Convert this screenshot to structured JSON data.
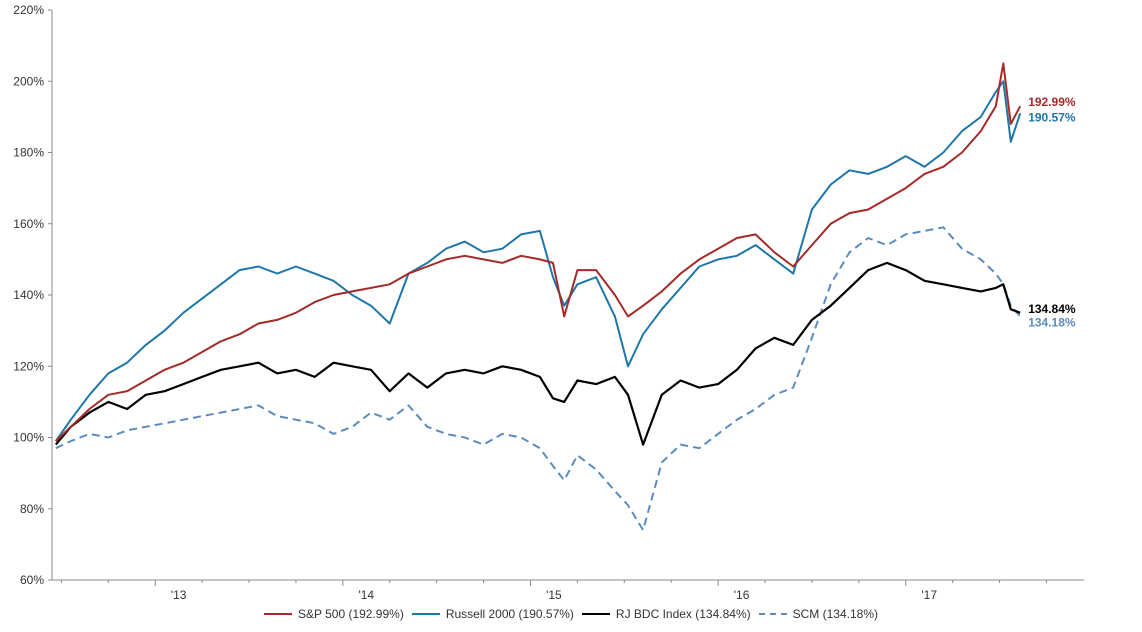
{
  "chart_data": {
    "type": "line",
    "y_ticks": [
      "60%",
      "80%",
      "100%",
      "120%",
      "140%",
      "160%",
      "180%",
      "200%",
      "220%"
    ],
    "ylim": [
      60,
      220
    ],
    "x_ticks": [
      "'13",
      "'14",
      "'15",
      "'16",
      "'17"
    ],
    "xlim": [
      2012.45,
      2017.95
    ],
    "x_tick_positions": [
      2013.0,
      2014.0,
      2015.0,
      2016.0,
      2017.0
    ],
    "grid": false,
    "legend_position": "bottom",
    "series": [
      {
        "name": "S&P 500 (192.99%)",
        "end_label": "192.99%",
        "color": "#a52a2a",
        "dash": "solid",
        "x": [
          2012.47,
          2012.55,
          2012.65,
          2012.75,
          2012.85,
          2012.95,
          2013.05,
          2013.15,
          2013.25,
          2013.35,
          2013.45,
          2013.55,
          2013.65,
          2013.75,
          2013.85,
          2013.95,
          2014.05,
          2014.15,
          2014.25,
          2014.35,
          2014.45,
          2014.55,
          2014.65,
          2014.75,
          2014.85,
          2014.95,
          2015.05,
          2015.12,
          2015.18,
          2015.25,
          2015.35,
          2015.45,
          2015.52,
          2015.6,
          2015.7,
          2015.8,
          2015.9,
          2016.0,
          2016.1,
          2016.2,
          2016.3,
          2016.4,
          2016.5,
          2016.6,
          2016.7,
          2016.8,
          2016.9,
          2017.0,
          2017.1,
          2017.2,
          2017.3,
          2017.4,
          2017.48,
          2017.52,
          2017.56,
          2017.61
        ],
        "y": [
          99,
          103,
          108,
          112,
          113,
          116,
          119,
          121,
          124,
          127,
          129,
          132,
          133,
          135,
          138,
          140,
          141,
          142,
          143,
          146,
          148,
          150,
          151,
          150,
          149,
          151,
          150,
          149,
          134,
          147,
          147,
          140,
          134,
          137,
          141,
          146,
          150,
          153,
          156,
          157,
          152,
          148,
          154,
          160,
          163,
          164,
          167,
          170,
          174,
          176,
          180,
          186,
          193,
          205,
          188,
          193
        ]
      },
      {
        "name": "Russell 2000 (190.57%)",
        "end_label": "190.57%",
        "color": "#1f77a8",
        "dash": "solid",
        "x": [
          2012.47,
          2012.55,
          2012.65,
          2012.75,
          2012.85,
          2012.95,
          2013.05,
          2013.15,
          2013.25,
          2013.35,
          2013.45,
          2013.55,
          2013.65,
          2013.75,
          2013.85,
          2013.95,
          2014.05,
          2014.15,
          2014.25,
          2014.35,
          2014.45,
          2014.55,
          2014.65,
          2014.75,
          2014.85,
          2014.95,
          2015.05,
          2015.12,
          2015.18,
          2015.25,
          2015.35,
          2015.45,
          2015.52,
          2015.6,
          2015.7,
          2015.8,
          2015.9,
          2016.0,
          2016.1,
          2016.2,
          2016.3,
          2016.4,
          2016.5,
          2016.6,
          2016.7,
          2016.8,
          2016.9,
          2017.0,
          2017.1,
          2017.2,
          2017.3,
          2017.4,
          2017.48,
          2017.52,
          2017.56,
          2017.61
        ],
        "y": [
          99,
          105,
          112,
          118,
          121,
          126,
          130,
          135,
          139,
          143,
          147,
          148,
          146,
          148,
          146,
          144,
          140,
          137,
          132,
          146,
          149,
          153,
          155,
          152,
          153,
          157,
          158,
          145,
          137,
          143,
          145,
          134,
          120,
          129,
          136,
          142,
          148,
          150,
          151,
          154,
          150,
          146,
          164,
          171,
          175,
          174,
          176,
          179,
          176,
          180,
          186,
          190,
          197,
          200,
          183,
          191
        ]
      },
      {
        "name": "RJ BDC Index (134.84%)",
        "end_label": "134.84%",
        "color": "#000000",
        "dash": "solid",
        "x": [
          2012.47,
          2012.55,
          2012.65,
          2012.75,
          2012.85,
          2012.95,
          2013.05,
          2013.15,
          2013.25,
          2013.35,
          2013.45,
          2013.55,
          2013.65,
          2013.75,
          2013.85,
          2013.95,
          2014.05,
          2014.15,
          2014.25,
          2014.35,
          2014.45,
          2014.55,
          2014.65,
          2014.75,
          2014.85,
          2014.95,
          2015.05,
          2015.12,
          2015.18,
          2015.25,
          2015.35,
          2015.45,
          2015.52,
          2015.6,
          2015.7,
          2015.8,
          2015.9,
          2016.0,
          2016.1,
          2016.2,
          2016.3,
          2016.4,
          2016.5,
          2016.6,
          2016.7,
          2016.8,
          2016.9,
          2017.0,
          2017.1,
          2017.2,
          2017.3,
          2017.4,
          2017.48,
          2017.52,
          2017.56,
          2017.61
        ],
        "y": [
          98,
          103,
          107,
          110,
          108,
          112,
          113,
          115,
          117,
          119,
          120,
          121,
          118,
          119,
          117,
          121,
          120,
          119,
          113,
          118,
          114,
          118,
          119,
          118,
          120,
          119,
          117,
          111,
          110,
          116,
          115,
          117,
          112,
          98,
          112,
          116,
          114,
          115,
          119,
          125,
          128,
          126,
          133,
          137,
          142,
          147,
          149,
          147,
          144,
          143,
          142,
          141,
          142,
          143,
          136,
          135
        ]
      },
      {
        "name": "SCM (134.18%)",
        "end_label": "134.18%",
        "color": "#5b8cbc",
        "dash": "8,5",
        "x": [
          2012.47,
          2012.55,
          2012.65,
          2012.75,
          2012.85,
          2012.95,
          2013.05,
          2013.15,
          2013.25,
          2013.35,
          2013.45,
          2013.55,
          2013.65,
          2013.75,
          2013.85,
          2013.95,
          2014.05,
          2014.15,
          2014.25,
          2014.35,
          2014.45,
          2014.55,
          2014.65,
          2014.75,
          2014.85,
          2014.95,
          2015.05,
          2015.12,
          2015.18,
          2015.25,
          2015.35,
          2015.45,
          2015.52,
          2015.6,
          2015.7,
          2015.8,
          2015.9,
          2016.0,
          2016.1,
          2016.2,
          2016.3,
          2016.4,
          2016.5,
          2016.6,
          2016.7,
          2016.8,
          2016.9,
          2017.0,
          2017.1,
          2017.2,
          2017.3,
          2017.4,
          2017.48,
          2017.52,
          2017.56,
          2017.61
        ],
        "y": [
          97,
          99,
          101,
          100,
          102,
          103,
          104,
          105,
          106,
          107,
          108,
          109,
          106,
          105,
          104,
          101,
          103,
          107,
          105,
          109,
          103,
          101,
          100,
          98,
          101,
          100,
          97,
          92,
          88,
          95,
          91,
          85,
          81,
          74,
          93,
          98,
          97,
          101,
          105,
          108,
          112,
          114,
          128,
          143,
          152,
          156,
          154,
          157,
          158,
          159,
          153,
          150,
          146,
          143,
          137,
          134
        ]
      }
    ]
  }
}
